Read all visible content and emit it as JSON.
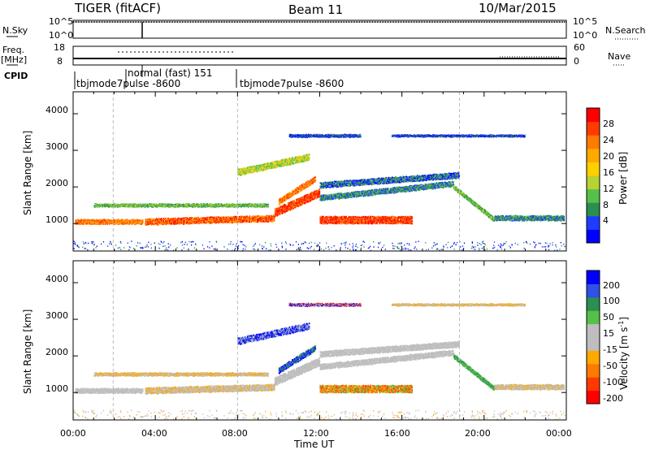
{
  "header": {
    "radar": "TIGER (fitACF)",
    "beam": "Beam 11",
    "date": "10/Mar/2015"
  },
  "sidebar": {
    "nsky": "N.Sky",
    "freq": "Freq.",
    "freq_unit": "[MHz]",
    "cpid": "CPID",
    "nsearch": "N.Search",
    "nave": "Nave"
  },
  "panels": {
    "nsky_ticks": [
      "10^5",
      "10^0"
    ],
    "nsearch_ticks": [
      "10^5",
      "10^0"
    ],
    "freq_ticks": [
      "18",
      "8"
    ],
    "nave_ticks": [
      "60",
      "0"
    ]
  },
  "cpid_labels": {
    "mode_a": "tbjmode7pulse -8600",
    "mode_b": "normal (fast) 151",
    "mode_c": "tbjmode7pulse -8600"
  },
  "chart_data": [
    {
      "type": "heatmap",
      "title": "",
      "ylabel": "Slant Range [km]",
      "xlabel": "",
      "ylim": [
        250,
        4600
      ],
      "yticks": [
        "1000",
        "2000",
        "3000",
        "4000"
      ],
      "colorbar": {
        "label": "Power [dB]",
        "ticks": [
          "4",
          "8",
          "12",
          "16",
          "20",
          "24",
          "28"
        ],
        "range": [
          0,
          30
        ]
      }
    },
    {
      "type": "heatmap",
      "title": "",
      "ylabel": "Slant Range [km]",
      "xlabel": "Time UT",
      "ylim": [
        250,
        4600
      ],
      "yticks": [
        "1000",
        "2000",
        "3000",
        "4000"
      ],
      "xticks": [
        "00:00",
        "04:00",
        "08:00",
        "12:00",
        "16:00",
        "20:00",
        "00:00"
      ],
      "colorbar": {
        "label": "Velocity [m s",
        "label_sup": "-1",
        "label_end": "]",
        "ticks": [
          "200",
          "100",
          "50",
          "15",
          "-15",
          "-50",
          "-100",
          "-200"
        ]
      }
    }
  ],
  "colors": {
    "power_scale": [
      "#0000ff",
      "#1e3cff",
      "#2a8f50",
      "#57c04a",
      "#b8d232",
      "#ffd000",
      "#ffa800",
      "#ff7a00",
      "#ff3a00",
      "#ff0000"
    ],
    "velocity_scale": [
      "#0000ff",
      "#3050e8",
      "#2a8f50",
      "#57c04a",
      "#bebebe",
      "#bebebe",
      "#ffa800",
      "#ff7a00",
      "#ff3a00",
      "#ff0000"
    ]
  }
}
